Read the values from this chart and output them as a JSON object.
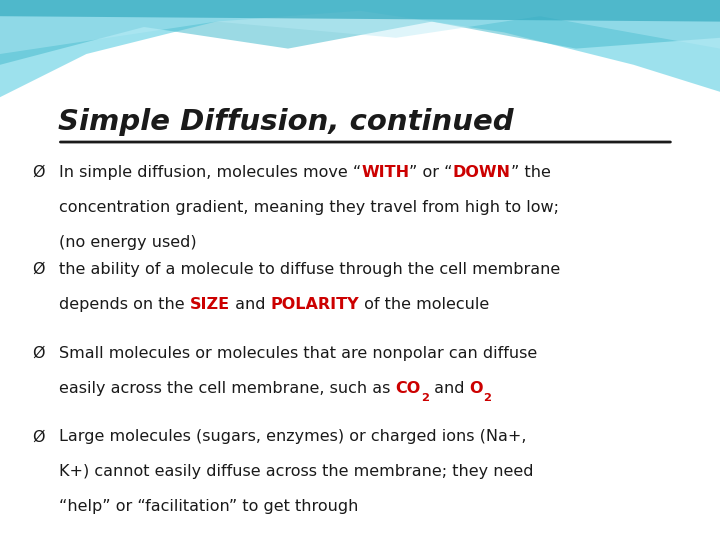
{
  "title": "Simple Diffusion, continued",
  "bg_color": "#ffffff",
  "title_color": "#1a1a1a",
  "text_color": "#1a1a1a",
  "red_color": "#cc0000",
  "bullets": [
    {
      "line1_parts": [
        {
          "text": "In simple diffusion, molecules move “",
          "bold": false,
          "red": false
        },
        {
          "text": "WITH",
          "bold": true,
          "red": true
        },
        {
          "text": "” or “",
          "bold": false,
          "red": false
        },
        {
          "text": "DOWN",
          "bold": true,
          "red": true
        },
        {
          "text": "” the",
          "bold": false,
          "red": false
        }
      ],
      "line2": "concentration gradient, meaning they travel from high to low;",
      "line3": "(no energy used)"
    },
    {
      "line1_parts": [
        {
          "text": "the ability of a molecule to diffuse through the cell membrane",
          "bold": false,
          "red": false
        }
      ],
      "line2_parts": [
        {
          "text": "depends on the ",
          "bold": false,
          "red": false
        },
        {
          "text": "SIZE",
          "bold": true,
          "red": true
        },
        {
          "text": " and ",
          "bold": false,
          "red": false
        },
        {
          "text": "POLARITY",
          "bold": true,
          "red": true
        },
        {
          "text": " of the molecule",
          "bold": false,
          "red": false
        }
      ]
    },
    {
      "line1_parts": [
        {
          "text": "Small molecules or molecules that are nonpolar can diffuse",
          "bold": false,
          "red": false
        }
      ],
      "line2_parts": [
        {
          "text": "easily across the cell membrane, such as ",
          "bold": false,
          "red": false
        },
        {
          "text": "CO",
          "bold": true,
          "red": true
        },
        {
          "text": "2",
          "bold": true,
          "red": true,
          "sub": true
        },
        {
          "text": " and ",
          "bold": false,
          "red": false
        },
        {
          "text": "O",
          "bold": true,
          "red": true
        },
        {
          "text": "2",
          "bold": true,
          "red": true,
          "sub": true
        }
      ]
    },
    {
      "line1_parts": [
        {
          "text": "Large molecules (sugars, enzymes) or charged ions (Na+,",
          "bold": false,
          "red": false
        }
      ],
      "line2": "K+) cannot easily diffuse across the membrane; they need",
      "line3": "“help” or “facilitation” to get through"
    }
  ]
}
